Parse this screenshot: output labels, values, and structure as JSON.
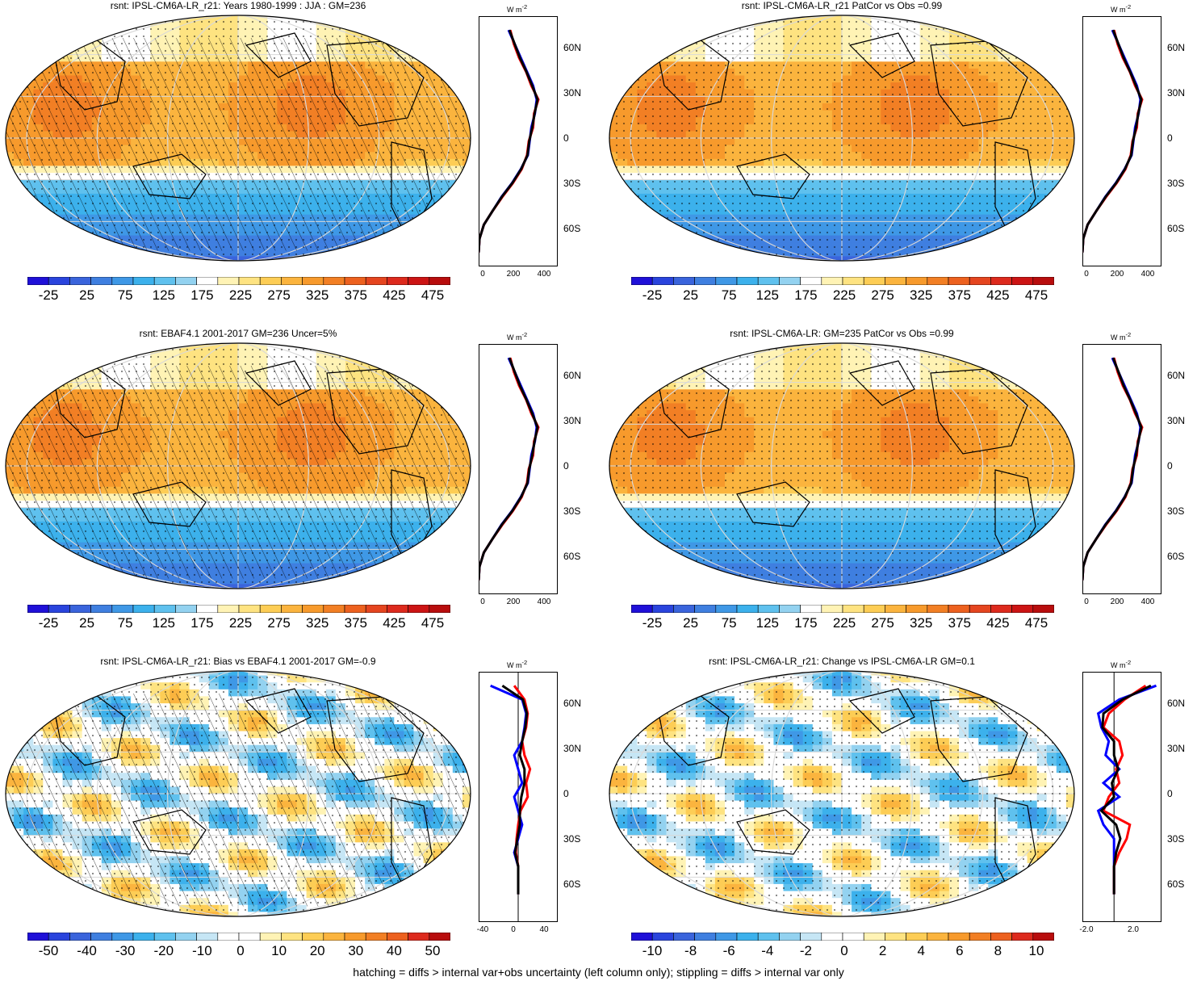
{
  "panels": [
    {
      "title": "rsnt: IPSL-CM6A-LR_r21: Years 1980-1999 : JJA : GM=236",
      "kind": "abs",
      "hatched": true,
      "colorbar": [
        "-25",
        "25",
        "75",
        "125",
        "175",
        "225",
        "275",
        "325",
        "375",
        "425",
        "475"
      ],
      "profile_xticks": [
        "0",
        "200",
        "400"
      ],
      "unit": "W m",
      "unit_sup": "-2",
      "lat_labels": [
        "60N",
        "30N",
        "0",
        "30S",
        "60S"
      ]
    },
    {
      "title": "rsnt: IPSL-CM6A-LR_r21 PatCor vs Obs =0.99",
      "kind": "abs",
      "hatched": false,
      "colorbar": [
        "-25",
        "25",
        "75",
        "125",
        "175",
        "225",
        "275",
        "325",
        "375",
        "425",
        "475"
      ],
      "profile_xticks": [
        "0",
        "200",
        "400"
      ],
      "unit": "W m",
      "unit_sup": "-2",
      "lat_labels": [
        "60N",
        "30N",
        "0",
        "30S",
        "60S"
      ]
    },
    {
      "title": "rsnt: EBAF4.1 2001-2017 GM=236 Uncer=5%",
      "kind": "abs",
      "hatched": true,
      "colorbar": [
        "-25",
        "25",
        "75",
        "125",
        "175",
        "225",
        "275",
        "325",
        "375",
        "425",
        "475"
      ],
      "profile_xticks": [
        "0",
        "200",
        "400"
      ],
      "unit": "W m",
      "unit_sup": "-2",
      "lat_labels": [
        "60N",
        "30N",
        "0",
        "30S",
        "60S"
      ]
    },
    {
      "title": "rsnt: IPSL-CM6A-LR: GM=235 PatCor vs Obs =0.99",
      "kind": "abs",
      "hatched": false,
      "colorbar": [
        "-25",
        "25",
        "75",
        "125",
        "175",
        "225",
        "275",
        "325",
        "375",
        "425",
        "475"
      ],
      "profile_xticks": [
        "0",
        "200",
        "400"
      ],
      "unit": "W m",
      "unit_sup": "-2",
      "lat_labels": [
        "60N",
        "30N",
        "0",
        "30S",
        "60S"
      ]
    },
    {
      "title": "rsnt: IPSL-CM6A-LR_r21: Bias vs EBAF4.1 2001-2017 GM=-0.9",
      "kind": "bias",
      "hatched": true,
      "colorbar": [
        "-50",
        "-40",
        "-30",
        "-20",
        "-10",
        "0",
        "10",
        "20",
        "30",
        "40",
        "50"
      ],
      "profile_xticks": [
        "-40",
        "0",
        "40"
      ],
      "unit": "W m",
      "unit_sup": "-2",
      "lat_labels": [
        "60N",
        "30N",
        "0",
        "30S",
        "60S"
      ]
    },
    {
      "title": "rsnt: IPSL-CM6A-LR_r21: Change vs IPSL-CM6A-LR GM=0.1",
      "kind": "change",
      "hatched": false,
      "colorbar": [
        "-10",
        "-8",
        "-6",
        "-4",
        "-2",
        "0",
        "2",
        "4",
        "6",
        "8",
        "10"
      ],
      "profile_xticks": [
        "-2.0",
        "2.0"
      ],
      "unit": "W m",
      "unit_sup": "-2",
      "lat_labels": [
        "60N",
        "30N",
        "0",
        "30S",
        "60S"
      ]
    }
  ],
  "footnote": "hatching = diffs > internal var+obs uncertainty (left column only); stippling = diffs > internal var only",
  "colors": {
    "abs_palette": [
      "#1f10d8",
      "#2a44dd",
      "#3a64dc",
      "#3f7fe0",
      "#3f98e6",
      "#3cb1ec",
      "#5fc1ee",
      "#93d2f0",
      "#ffffff",
      "#fff3b5",
      "#fee381",
      "#fdcd55",
      "#fbb43e",
      "#f79a2c",
      "#f27f24",
      "#ed611f",
      "#e5451f",
      "#dd2a1d",
      "#cc1414",
      "#b80d0d"
    ],
    "diff_palette": [
      "#1f10d8",
      "#2a44dd",
      "#3a64dc",
      "#3f7fe0",
      "#3f98e6",
      "#3cb1ec",
      "#5fc1ee",
      "#93d2f0",
      "#c6e6f5",
      "#ffffff",
      "#ffffff",
      "#fff3b5",
      "#fee381",
      "#fdcd55",
      "#fbb43e",
      "#f79a2c",
      "#f27f24",
      "#ed611f",
      "#dd2a1d",
      "#b80d0d"
    ],
    "model_line": "#0000ff",
    "obs_line": "#ff0000",
    "mean_line": "#000000"
  },
  "chart_data": [
    {
      "type": "heatmap",
      "title": "rsnt: IPSL-CM6A-LR_r21: Years 1980-1999 : JJA : GM=236",
      "projection": "Robinson, Pacific-centred",
      "colorbar_range": [
        -25,
        475
      ],
      "zonal_profile": {
        "type": "line",
        "lat": [
          80,
          70,
          60,
          50,
          40,
          30,
          20,
          10,
          0,
          -10,
          -20,
          -30,
          -40,
          -50,
          -60,
          -70,
          -80
        ],
        "series": [
          {
            "name": "",
            "values": [
              170,
              205,
              240,
              275,
              310,
              330,
              320,
              300,
              290,
              280,
              240,
              190,
              130,
              80,
              30,
              5,
              0
            ]
          },
          {
            "name": "",
            "values": [
              180,
              200,
              230,
              270,
              300,
              340,
              315,
              310,
              285,
              275,
              245,
              195,
              135,
              80,
              30,
              5,
              0
            ]
          },
          {
            "name": "",
            "values": [
              175,
              205,
              235,
              272,
              305,
              335,
              318,
              305,
              288,
              278,
              242,
              192,
              132,
              80,
              30,
              5,
              0
            ]
          }
        ],
        "xlim": [
          0,
          450
        ]
      }
    },
    {
      "type": "heatmap",
      "title": "rsnt: IPSL-CM6A-LR_r21 PatCor vs Obs =0.99",
      "colorbar_range": [
        -25,
        475
      ]
    },
    {
      "type": "heatmap",
      "title": "rsnt: EBAF4.1 2001-2017 GM=236 Uncer=5%",
      "colorbar_range": [
        -25,
        475
      ]
    },
    {
      "type": "heatmap",
      "title": "rsnt: IPSL-CM6A-LR: GM=235 PatCor vs Obs =0.99",
      "colorbar_range": [
        -25,
        475
      ]
    },
    {
      "type": "heatmap",
      "title": "rsnt: IPSL-CM6A-LR_r21: Bias vs EBAF4.1 2001-2017 GM=-0.9",
      "colorbar_range": [
        -50,
        50
      ],
      "zonal_profile": {
        "type": "line",
        "lat": [
          80,
          70,
          60,
          50,
          40,
          30,
          20,
          10,
          0,
          -10,
          -20,
          -30,
          -40,
          -50,
          -60,
          -70
        ],
        "series": [
          {
            "name": "",
            "values": [
              -35,
              5,
              10,
              8,
              5,
              -5,
              0,
              5,
              -5,
              0,
              5,
              0,
              -5,
              0,
              0,
              0
            ]
          },
          {
            "name": "",
            "values": [
              -5,
              8,
              12,
              10,
              5,
              8,
              15,
              10,
              12,
              3,
              0,
              -2,
              -3,
              0,
              0,
              0
            ]
          },
          {
            "name": "",
            "values": [
              -20,
              6,
              11,
              9,
              5,
              2,
              8,
              8,
              4,
              2,
              2,
              -1,
              -4,
              0,
              0,
              0
            ]
          }
        ],
        "xlim": [
          -50,
          50
        ]
      }
    },
    {
      "type": "heatmap",
      "title": "rsnt: IPSL-CM6A-LR_r21: Change vs IPSL-CM6A-LR GM=0.1",
      "colorbar_range": [
        -10,
        10
      ],
      "zonal_profile": {
        "type": "line",
        "lat": [
          80,
          70,
          60,
          50,
          40,
          30,
          20,
          10,
          0,
          -10,
          -20,
          -30,
          -40,
          -50,
          -60,
          -70
        ],
        "series": [
          {
            "name": "",
            "values": [
              4,
              0.5,
              -1.5,
              -1.2,
              -0.5,
              -0.8,
              0.5,
              -1,
              0.5,
              -1.5,
              -1,
              0,
              0,
              0,
              0,
              0
            ]
          },
          {
            "name": "",
            "values": [
              3,
              1,
              -0.5,
              -1,
              0.5,
              0.8,
              0.2,
              0.5,
              -0.5,
              -1,
              1.5,
              1.2,
              0.5,
              0,
              0,
              0
            ]
          },
          {
            "name": "",
            "values": [
              3.5,
              0.8,
              -1,
              -1.1,
              0,
              0,
              0.4,
              -0.2,
              0,
              -1.2,
              0.2,
              0.6,
              0.2,
              0,
              0,
              0
            ]
          }
        ],
        "xlim": [
          -3,
          4.5
        ]
      }
    }
  ]
}
